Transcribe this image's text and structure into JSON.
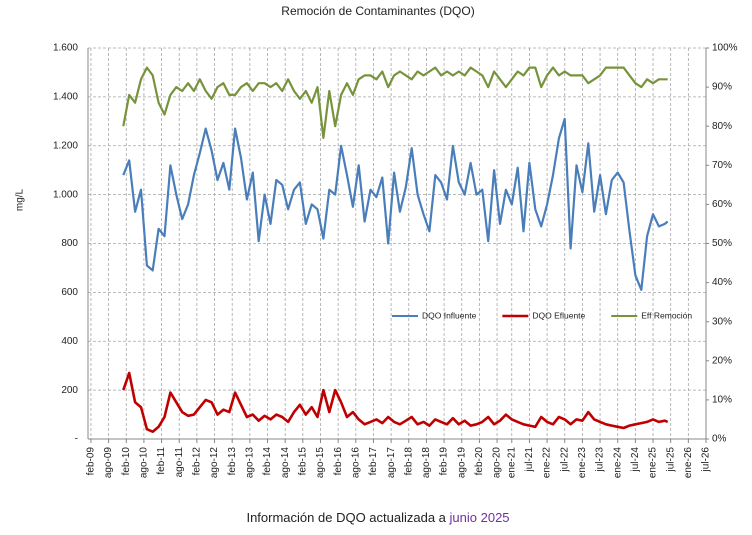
{
  "chart_data": {
    "type": "line",
    "title": "Remoción de Contaminantes (DQO)",
    "y_label": "mg/L",
    "x": [
      "2010-01",
      "2010-03",
      "2010-05",
      "2010-07",
      "2010-09",
      "2010-11",
      "2011-01",
      "2011-03",
      "2011-05",
      "2011-07",
      "2011-09",
      "2011-11",
      "2012-01",
      "2012-03",
      "2012-05",
      "2012-07",
      "2012-09",
      "2012-11",
      "2013-01",
      "2013-03",
      "2013-05",
      "2013-07",
      "2013-09",
      "2013-11",
      "2014-01",
      "2014-03",
      "2014-05",
      "2014-07",
      "2014-09",
      "2014-11",
      "2015-01",
      "2015-03",
      "2015-05",
      "2015-07",
      "2015-09",
      "2015-11",
      "2016-01",
      "2016-03",
      "2016-05",
      "2016-07",
      "2016-09",
      "2016-11",
      "2017-01",
      "2017-03",
      "2017-05",
      "2017-07",
      "2017-09",
      "2017-11",
      "2018-01",
      "2018-03",
      "2018-05",
      "2018-07",
      "2018-09",
      "2018-11",
      "2019-01",
      "2019-03",
      "2019-05",
      "2019-07",
      "2019-09",
      "2019-11",
      "2020-01",
      "2020-03",
      "2020-05",
      "2020-07",
      "2020-09",
      "2020-11",
      "2021-01",
      "2021-03",
      "2021-05",
      "2021-07",
      "2021-09",
      "2021-11",
      "2022-01",
      "2022-03",
      "2022-05",
      "2022-07",
      "2022-09",
      "2022-11",
      "2023-01",
      "2023-03",
      "2023-05",
      "2023-07",
      "2023-09",
      "2023-11",
      "2024-01",
      "2024-03",
      "2024-05",
      "2024-07",
      "2024-09",
      "2024-11",
      "2025-01",
      "2025-03",
      "2025-05",
      "2025-06"
    ],
    "series": [
      {
        "name": "DQO Influente",
        "color": "#4a7ebb",
        "values": [
          1080,
          1140,
          930,
          1020,
          710,
          690,
          860,
          830,
          1120,
          1000,
          900,
          960,
          1080,
          1170,
          1270,
          1180,
          1060,
          1130,
          1020,
          1270,
          1150,
          980,
          1090,
          810,
          1000,
          880,
          1060,
          1040,
          940,
          1020,
          1050,
          880,
          960,
          940,
          820,
          1020,
          1000,
          1200,
          1080,
          950,
          1120,
          890,
          1020,
          990,
          1070,
          800,
          1090,
          930,
          1030,
          1190,
          1000,
          920,
          850,
          1080,
          1050,
          980,
          1200,
          1050,
          1000,
          1130,
          1000,
          1020,
          810,
          1100,
          880,
          1020,
          960,
          1110,
          850,
          1130,
          940,
          870,
          960,
          1080,
          1230,
          1310,
          780,
          1120,
          1010,
          1210,
          930,
          1080,
          920,
          1060,
          1090,
          1050,
          850,
          670,
          610,
          830,
          920,
          870,
          880,
          890
        ]
      },
      {
        "name": "DQO Efluente",
        "color": "#c00000",
        "values": [
          200,
          270,
          150,
          130,
          40,
          30,
          50,
          90,
          190,
          150,
          110,
          95,
          100,
          130,
          160,
          150,
          100,
          120,
          110,
          190,
          140,
          90,
          100,
          75,
          95,
          80,
          100,
          90,
          70,
          110,
          140,
          100,
          130,
          90,
          200,
          110,
          200,
          150,
          90,
          110,
          80,
          60,
          70,
          80,
          65,
          90,
          70,
          60,
          75,
          90,
          60,
          70,
          55,
          80,
          70,
          60,
          85,
          60,
          75,
          55,
          60,
          70,
          90,
          60,
          75,
          100,
          80,
          70,
          60,
          55,
          50,
          90,
          70,
          60,
          90,
          80,
          60,
          80,
          75,
          110,
          80,
          70,
          60,
          55,
          50,
          45,
          55,
          60,
          65,
          70,
          80,
          70,
          75,
          70
        ]
      },
      {
        "name": "Eff Remoción",
        "color": "#77933c",
        "axis": "y2",
        "values": [
          80,
          88,
          86,
          92,
          95,
          93,
          86,
          83,
          88,
          90,
          89,
          91,
          89,
          92,
          89,
          87,
          90,
          91,
          88,
          88,
          90,
          91,
          89,
          91,
          91,
          90,
          91,
          89,
          92,
          89,
          87,
          89,
          86,
          90,
          77,
          89,
          80,
          88,
          91,
          88,
          92,
          93,
          93,
          92,
          94,
          90,
          93,
          94,
          93,
          92,
          94,
          93,
          94,
          95,
          93,
          94,
          93,
          94,
          93,
          95,
          94,
          93,
          90,
          94,
          92,
          90,
          92,
          94,
          93,
          95,
          95,
          90,
          93,
          95,
          93,
          94,
          93,
          93,
          93,
          91,
          92,
          93,
          95,
          95,
          95,
          95,
          93,
          91,
          90,
          92,
          91,
          92,
          92,
          92
        ]
      }
    ],
    "xlim": [
      "2009-01",
      "2026-07"
    ],
    "xticks": [
      {
        "value": "2009-02",
        "label": "feb-09"
      },
      {
        "value": "2009-08",
        "label": "ago-09"
      },
      {
        "value": "2010-02",
        "label": "feb-10"
      },
      {
        "value": "2010-08",
        "label": "ago-10"
      },
      {
        "value": "2011-02",
        "label": "feb-11"
      },
      {
        "value": "2011-08",
        "label": "ago-11"
      },
      {
        "value": "2012-02",
        "label": "feb-12"
      },
      {
        "value": "2012-08",
        "label": "ago-12"
      },
      {
        "value": "2013-02",
        "label": "feb-13"
      },
      {
        "value": "2013-08",
        "label": "ago-13"
      },
      {
        "value": "2014-02",
        "label": "feb-14"
      },
      {
        "value": "2014-08",
        "label": "ago-14"
      },
      {
        "value": "2015-02",
        "label": "feb-15"
      },
      {
        "value": "2015-08",
        "label": "ago-15"
      },
      {
        "value": "2016-02",
        "label": "feb-16"
      },
      {
        "value": "2016-08",
        "label": "ago-16"
      },
      {
        "value": "2017-02",
        "label": "feb-17"
      },
      {
        "value": "2017-08",
        "label": "ago-17"
      },
      {
        "value": "2018-02",
        "label": "feb-18"
      },
      {
        "value": "2018-08",
        "label": "ago-18"
      },
      {
        "value": "2019-02",
        "label": "feb-19"
      },
      {
        "value": "2019-08",
        "label": "ago-19"
      },
      {
        "value": "2020-02",
        "label": "feb-20"
      },
      {
        "value": "2020-08",
        "label": "ago-20"
      },
      {
        "value": "2021-01",
        "label": "ene-21"
      },
      {
        "value": "2021-07",
        "label": "jul-21"
      },
      {
        "value": "2022-01",
        "label": "ene-22"
      },
      {
        "value": "2022-07",
        "label": "jul-22"
      },
      {
        "value": "2023-01",
        "label": "ene-23"
      },
      {
        "value": "2023-07",
        "label": "jul-23"
      },
      {
        "value": "2024-01",
        "label": "ene-24"
      },
      {
        "value": "2024-07",
        "label": "jul-24"
      },
      {
        "value": "2025-01",
        "label": "ene-25"
      },
      {
        "value": "2025-07",
        "label": "jul-25"
      },
      {
        "value": "2026-01",
        "label": "ene-26"
      },
      {
        "value": "2026-07",
        "label": "jul-26"
      }
    ],
    "ylim": [
      0,
      1600
    ],
    "yticks": [
      {
        "value": 0,
        "label": "-"
      },
      200,
      400,
      600,
      800,
      {
        "value": 1000,
        "label": "1.000"
      },
      {
        "value": 1200,
        "label": "1.200"
      },
      {
        "value": 1400,
        "label": "1.400"
      },
      {
        "value": 1600,
        "label": "1.600"
      }
    ],
    "y2lim": [
      0,
      100
    ],
    "y2ticks": [
      {
        "value": 0,
        "label": "0%"
      },
      {
        "value": 10,
        "label": "10%"
      },
      {
        "value": 20,
        "label": "20%"
      },
      {
        "value": 30,
        "label": "30%"
      },
      {
        "value": 40,
        "label": "40%"
      },
      {
        "value": 50,
        "label": "50%"
      },
      {
        "value": 60,
        "label": "60%"
      },
      {
        "value": 70,
        "label": "70%"
      },
      {
        "value": 80,
        "label": "80%"
      },
      {
        "value": 90,
        "label": "90%"
      },
      {
        "value": 100,
        "label": "100%"
      }
    ],
    "grid": true,
    "legend": "lower right",
    "footer": {
      "text": "Información de DQO actualizada a",
      "highlight": "junio 2025",
      "highlight_color": "#7030a0"
    }
  }
}
